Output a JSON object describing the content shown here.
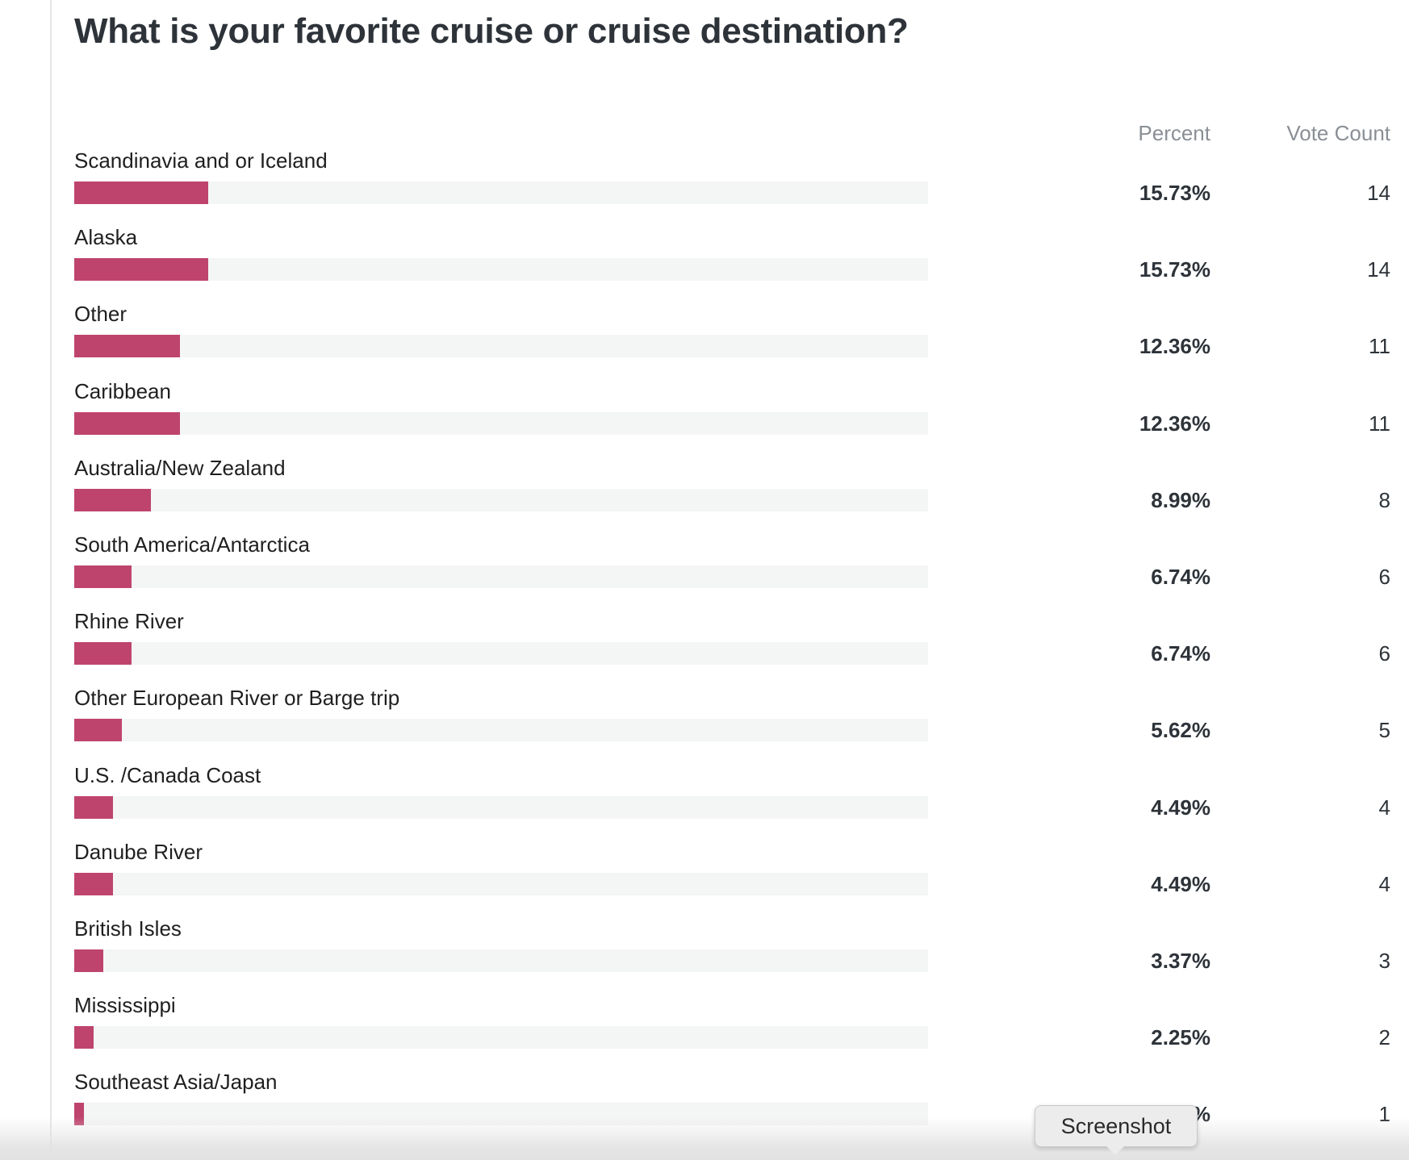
{
  "header": {
    "title": "What is your favorite cruise or cruise destination?",
    "percent_label": "Percent",
    "votes_label": "Vote Count"
  },
  "tooltip": {
    "label": "Screenshot"
  },
  "colors": {
    "bar": "#be446e",
    "track": "#f4f5f5"
  },
  "chart_data": {
    "type": "bar",
    "orientation": "horizontal",
    "title": "What is your favorite cruise or cruise destination?",
    "xlim": [
      0,
      100
    ],
    "categories": [
      "Scandinavia and or Iceland",
      "Alaska",
      "Other",
      "Caribbean",
      "Australia/New Zealand",
      "South America/Antarctica",
      "Rhine River",
      "Other European River or Barge trip",
      "U.S. /Canada Coast",
      "Danube River",
      "British Isles",
      "Mississippi",
      "Southeast Asia/Japan"
    ],
    "values": [
      15.73,
      15.73,
      12.36,
      12.36,
      8.99,
      6.74,
      6.74,
      5.62,
      4.49,
      4.49,
      3.37,
      2.25,
      1.12
    ],
    "percent_labels": [
      "15.73%",
      "15.73%",
      "12.36%",
      "12.36%",
      "8.99%",
      "6.74%",
      "6.74%",
      "5.62%",
      "4.49%",
      "4.49%",
      "3.37%",
      "2.25%",
      "%"
    ],
    "vote_counts": [
      "14",
      "14",
      "11",
      "11",
      "8",
      "6",
      "6",
      "5",
      "4",
      "4",
      "3",
      "2",
      "1"
    ]
  }
}
